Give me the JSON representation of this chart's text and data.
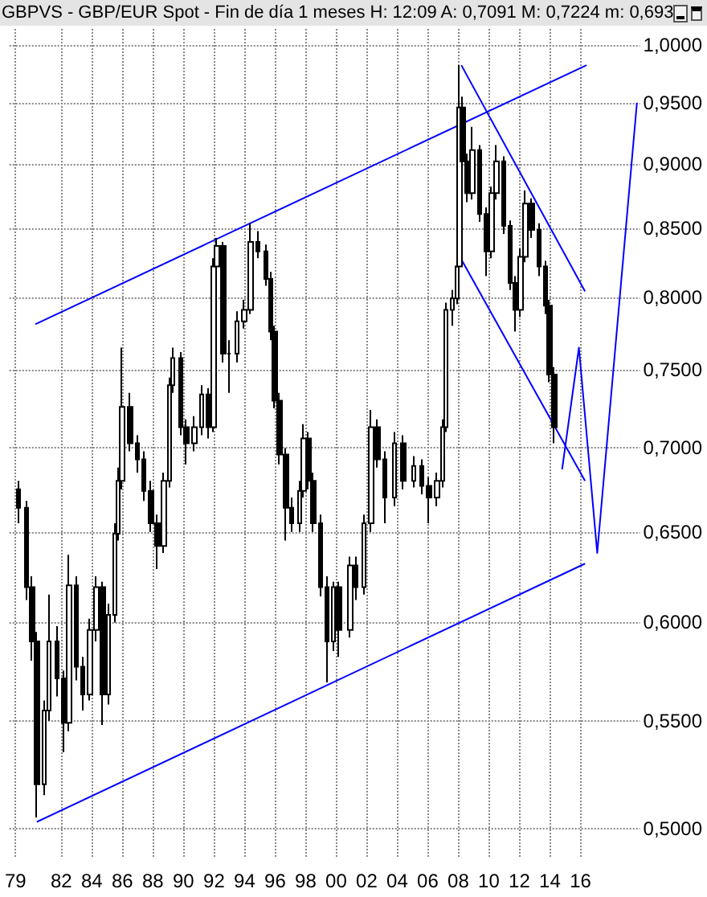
{
  "chart_data": {
    "type": "candlestick",
    "title": "GBPVS - GBP/EUR Spot - Fin de día 1 meses  H: 12:09  A: 0,7091  M: 0,7224  m: 0,693",
    "series": [
      {
        "type": "candlestick",
        "color": "#000000",
        "x": [
          1979.2,
          1979.7,
          1980.1,
          1980.4,
          1980.9,
          1981.2,
          1981.7,
          1982.2,
          1982.5,
          1983.0,
          1983.4,
          1983.9,
          1984.3,
          1984.7,
          1985.1,
          1985.5,
          1985.7,
          1986.0,
          1986.5,
          1987.0,
          1987.4,
          1987.9,
          1988.3,
          1988.7,
          1989.1,
          1989.3,
          1989.8,
          1990.2,
          1990.7,
          1991.2,
          1991.6,
          1992.0,
          1992.2,
          1992.6,
          1993.0,
          1993.5,
          1994.0,
          1994.4,
          1994.9,
          1995.4,
          1995.7,
          1996.0,
          1996.3,
          1996.7,
          1997.1,
          1997.6,
          1997.9,
          1998.2,
          1998.5,
          1999.0,
          1999.4,
          1999.8,
          2000.2,
          2000.9,
          2001.3,
          2001.8,
          2002.3,
          2002.7,
          2003.2,
          2003.8,
          2004.4,
          2005.1,
          2005.6,
          2006.1,
          2006.6,
          2007.0,
          2007.2,
          2007.6,
          2007.9,
          2008.1,
          2008.3,
          2008.6,
          2008.9,
          2009.4,
          2009.8,
          2010.2,
          2010.5,
          2011.0,
          2011.4,
          2011.7,
          2012.1,
          2012.4,
          2012.8,
          2013.3,
          2013.7,
          2014.0,
          2014.3
        ],
        "ohlc": [
          [
            0.675,
            0.68,
            0.655,
            0.664
          ],
          [
            0.664,
            0.668,
            0.612,
            0.619
          ],
          [
            0.619,
            0.625,
            0.58,
            0.59
          ],
          [
            0.59,
            0.595,
            0.505,
            0.52
          ],
          [
            0.52,
            0.56,
            0.515,
            0.555
          ],
          [
            0.555,
            0.615,
            0.55,
            0.59
          ],
          [
            0.59,
            0.598,
            0.562,
            0.571
          ],
          [
            0.571,
            0.575,
            0.535,
            0.549
          ],
          [
            0.549,
            0.637,
            0.545,
            0.62
          ],
          [
            0.62,
            0.625,
            0.57,
            0.577
          ],
          [
            0.577,
            0.582,
            0.555,
            0.563
          ],
          [
            0.563,
            0.602,
            0.56,
            0.596
          ],
          [
            0.596,
            0.625,
            0.59,
            0.619
          ],
          [
            0.619,
            0.622,
            0.548,
            0.563
          ],
          [
            0.563,
            0.61,
            0.558,
            0.604
          ],
          [
            0.604,
            0.655,
            0.6,
            0.649
          ],
          [
            0.649,
            0.688,
            0.645,
            0.68
          ],
          [
            0.68,
            0.765,
            0.675,
            0.726
          ],
          [
            0.726,
            0.735,
            0.698,
            0.703
          ],
          [
            0.703,
            0.708,
            0.685,
            0.693
          ],
          [
            0.693,
            0.698,
            0.668,
            0.674
          ],
          [
            0.674,
            0.68,
            0.65,
            0.655
          ],
          [
            0.655,
            0.66,
            0.629,
            0.642
          ],
          [
            0.642,
            0.685,
            0.638,
            0.68
          ],
          [
            0.68,
            0.745,
            0.676,
            0.74
          ],
          [
            0.74,
            0.765,
            0.735,
            0.758
          ],
          [
            0.758,
            0.762,
            0.708,
            0.713
          ],
          [
            0.713,
            0.718,
            0.69,
            0.703
          ],
          [
            0.703,
            0.72,
            0.698,
            0.713
          ],
          [
            0.713,
            0.74,
            0.708,
            0.734
          ],
          [
            0.734,
            0.738,
            0.706,
            0.713
          ],
          [
            0.713,
            0.828,
            0.71,
            0.822
          ],
          [
            0.822,
            0.843,
            0.815,
            0.837
          ],
          [
            0.837,
            0.84,
            0.755,
            0.761
          ],
          [
            0.761,
            0.77,
            0.735,
            0.761
          ],
          [
            0.761,
            0.79,
            0.755,
            0.783
          ],
          [
            0.783,
            0.798,
            0.778,
            0.791
          ],
          [
            0.791,
            0.854,
            0.788,
            0.84
          ],
          [
            0.84,
            0.848,
            0.828,
            0.833
          ],
          [
            0.833,
            0.838,
            0.808,
            0.813
          ],
          [
            0.813,
            0.818,
            0.77,
            0.776
          ],
          [
            0.776,
            0.78,
            0.725,
            0.73
          ],
          [
            0.73,
            0.735,
            0.69,
            0.696
          ],
          [
            0.696,
            0.7,
            0.645,
            0.664
          ],
          [
            0.664,
            0.67,
            0.65,
            0.655
          ],
          [
            0.655,
            0.68,
            0.65,
            0.674
          ],
          [
            0.674,
            0.715,
            0.67,
            0.706
          ],
          [
            0.706,
            0.71,
            0.675,
            0.68
          ],
          [
            0.68,
            0.685,
            0.65,
            0.655
          ],
          [
            0.655,
            0.66,
            0.614,
            0.619
          ],
          [
            0.619,
            0.625,
            0.569,
            0.59
          ],
          [
            0.59,
            0.622,
            0.585,
            0.619
          ],
          [
            0.619,
            0.622,
            0.582,
            0.596
          ],
          [
            0.596,
            0.636,
            0.592,
            0.631
          ],
          [
            0.631,
            0.636,
            0.612,
            0.619
          ],
          [
            0.619,
            0.66,
            0.615,
            0.655
          ],
          [
            0.655,
            0.724,
            0.65,
            0.713
          ],
          [
            0.713,
            0.718,
            0.688,
            0.693
          ],
          [
            0.693,
            0.698,
            0.655,
            0.67
          ],
          [
            0.67,
            0.71,
            0.665,
            0.703
          ],
          [
            0.703,
            0.708,
            0.675,
            0.68
          ],
          [
            0.68,
            0.695,
            0.676,
            0.689
          ],
          [
            0.689,
            0.693,
            0.672,
            0.677
          ],
          [
            0.677,
            0.682,
            0.655,
            0.67
          ],
          [
            0.67,
            0.685,
            0.665,
            0.68
          ],
          [
            0.68,
            0.718,
            0.676,
            0.713
          ],
          [
            0.713,
            0.796,
            0.71,
            0.791
          ],
          [
            0.791,
            0.805,
            0.78,
            0.799
          ],
          [
            0.799,
            0.83,
            0.795,
            0.822
          ],
          [
            0.822,
            0.982,
            0.818,
            0.946
          ],
          [
            0.946,
            0.955,
            0.895,
            0.902
          ],
          [
            0.902,
            0.908,
            0.87,
            0.877
          ],
          [
            0.877,
            0.93,
            0.872,
            0.911
          ],
          [
            0.911,
            0.915,
            0.855,
            0.861
          ],
          [
            0.861,
            0.866,
            0.815,
            0.833
          ],
          [
            0.833,
            0.882,
            0.828,
            0.877
          ],
          [
            0.877,
            0.915,
            0.872,
            0.902
          ],
          [
            0.902,
            0.906,
            0.846,
            0.852
          ],
          [
            0.852,
            0.856,
            0.805,
            0.81
          ],
          [
            0.81,
            0.815,
            0.776,
            0.791
          ],
          [
            0.791,
            0.835,
            0.786,
            0.829
          ],
          [
            0.829,
            0.879,
            0.825,
            0.869
          ],
          [
            0.869,
            0.873,
            0.843,
            0.849
          ],
          [
            0.849,
            0.854,
            0.815,
            0.822
          ],
          [
            0.822,
            0.826,
            0.788,
            0.794
          ],
          [
            0.794,
            0.798,
            0.742,
            0.747
          ],
          [
            0.747,
            0.752,
            0.703,
            0.713
          ]
        ]
      },
      {
        "type": "line",
        "color": "#0000ff",
        "x": [
          1980.3,
          2016.4
        ],
        "values": [
          0.781,
          0.982
        ]
      },
      {
        "type": "line",
        "color": "#0000ff",
        "x": [
          1980.4,
          2016.3
        ],
        "values": [
          0.503,
          0.632
        ]
      },
      {
        "type": "line",
        "color": "#0000ff",
        "x": [
          2008.2,
          2016.3
        ],
        "values": [
          0.982,
          0.804
        ]
      },
      {
        "type": "line",
        "color": "#0000ff",
        "x": [
          2008.2,
          2016.3
        ],
        "values": [
          0.827,
          0.68
        ]
      },
      {
        "type": "line",
        "color": "#0000ff",
        "x": [
          2014.8,
          2015.9,
          2017.1,
          2019.7
        ],
        "values": [
          0.687,
          0.765,
          0.638,
          0.95
        ]
      }
    ],
    "log": true,
    "xlim": [
      1978.6,
      2019.9
    ],
    "ylim": [
      0.487,
      1.014
    ],
    "xticks": [
      {
        "value": 1979,
        "label": "79"
      },
      {
        "value": 1982,
        "label": "82"
      },
      {
        "value": 1984,
        "label": "84"
      },
      {
        "value": 1986,
        "label": "86"
      },
      {
        "value": 1988,
        "label": "88"
      },
      {
        "value": 1990,
        "label": "90"
      },
      {
        "value": 1992,
        "label": "92"
      },
      {
        "value": 1994,
        "label": "94"
      },
      {
        "value": 1996,
        "label": "96"
      },
      {
        "value": 1998,
        "label": "98"
      },
      {
        "value": 2000,
        "label": "00"
      },
      {
        "value": 2002,
        "label": "02"
      },
      {
        "value": 2004,
        "label": "04"
      },
      {
        "value": 2006,
        "label": "06"
      },
      {
        "value": 2008,
        "label": "08"
      },
      {
        "value": 2010,
        "label": "10"
      },
      {
        "value": 2012,
        "label": "12"
      },
      {
        "value": 2014,
        "label": "14"
      },
      {
        "value": 2016,
        "label": "16"
      }
    ],
    "yticks": [
      {
        "value": 0.5,
        "label": "0,5000"
      },
      {
        "value": 0.55,
        "label": "0,5500"
      },
      {
        "value": 0.6,
        "label": "0,6000"
      },
      {
        "value": 0.65,
        "label": "0,6500"
      },
      {
        "value": 0.7,
        "label": "0,7000"
      },
      {
        "value": 0.75,
        "label": "0,7500"
      },
      {
        "value": 0.8,
        "label": "0,8000"
      },
      {
        "value": 0.85,
        "label": "0,8500"
      },
      {
        "value": 0.9,
        "label": "0,9000"
      },
      {
        "value": 0.95,
        "label": "0,9500"
      },
      {
        "value": 1.0,
        "label": "1,0000"
      }
    ],
    "grid": true,
    "marker": "none",
    "line_style": "solid"
  }
}
